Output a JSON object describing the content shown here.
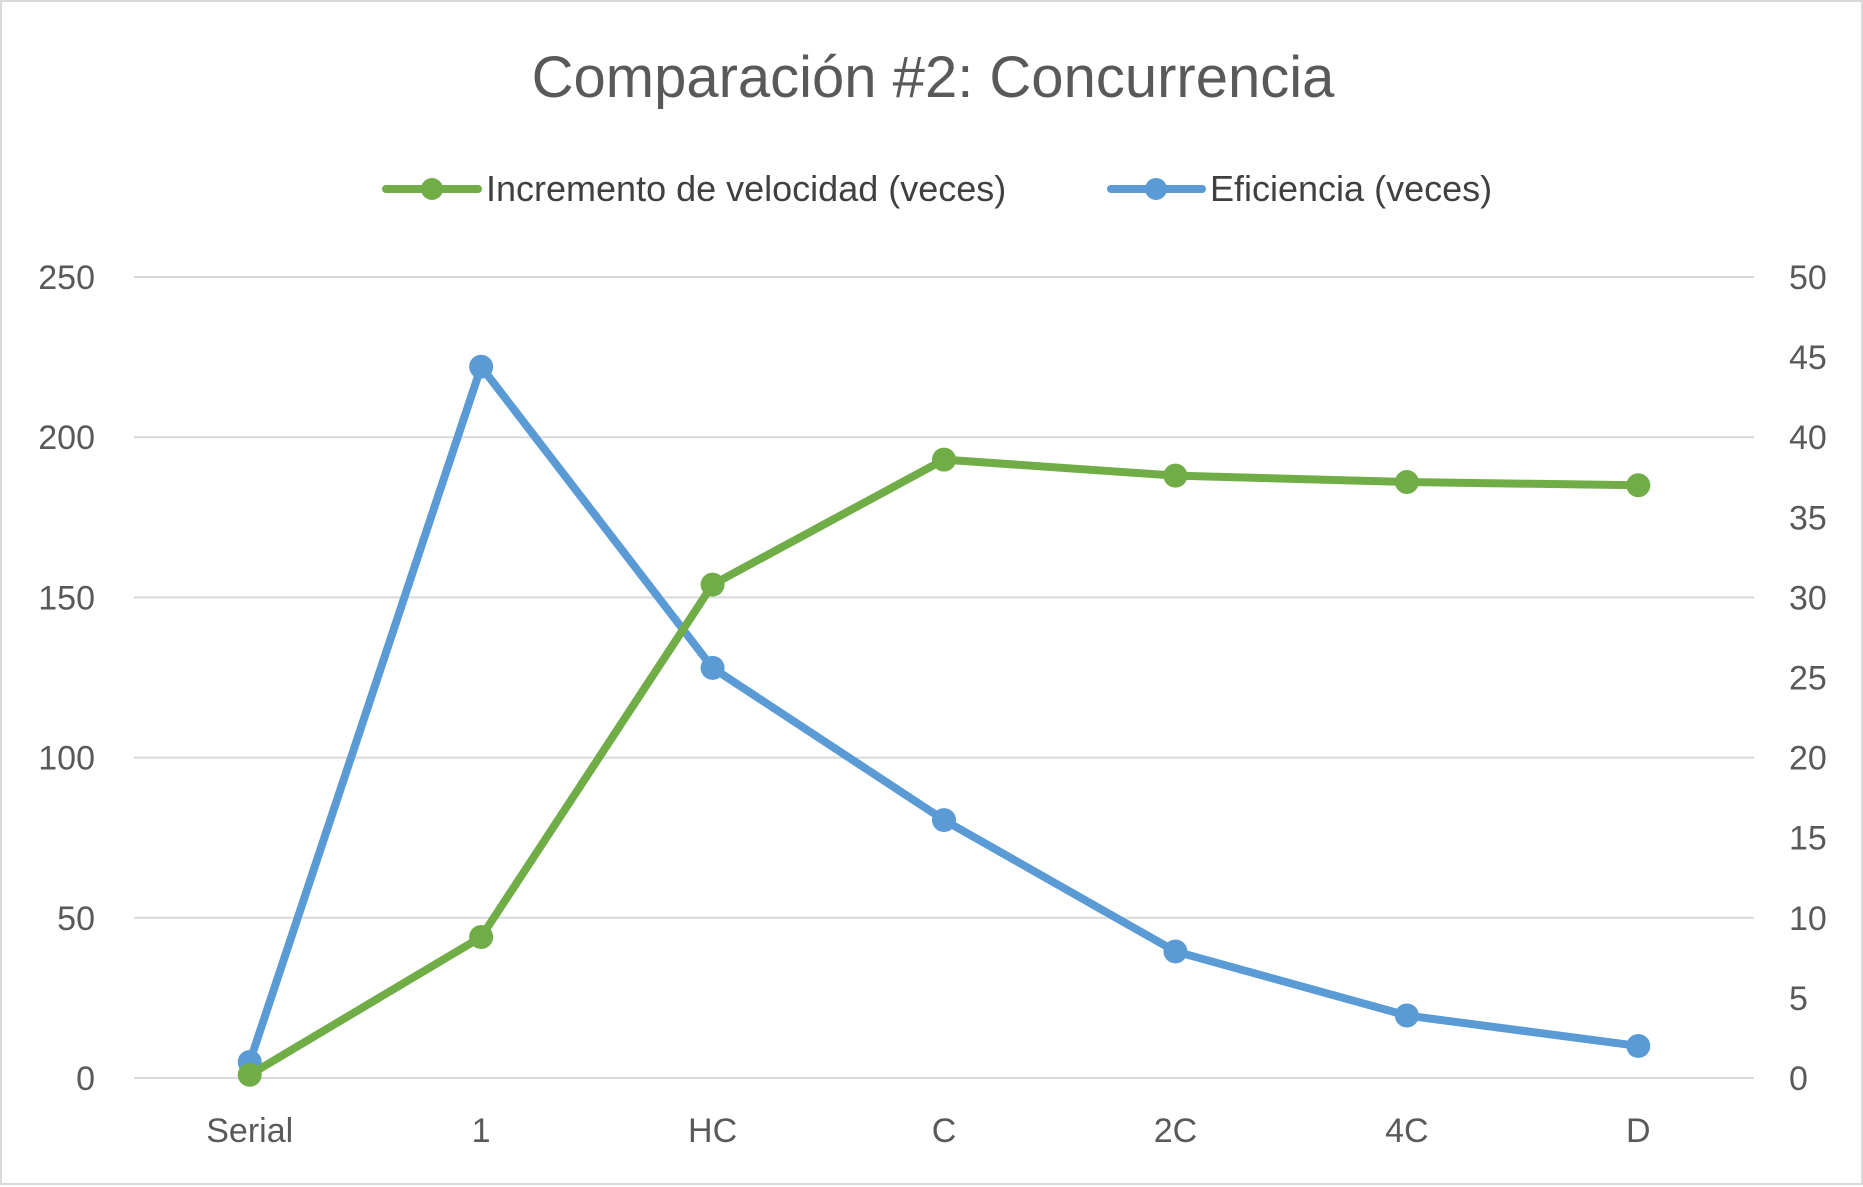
{
  "chart_data": {
    "type": "line",
    "title": "Comparación #2: Concurrencia",
    "categories": [
      "Serial",
      "1",
      "HC",
      "C",
      "2C",
      "4C",
      "D"
    ],
    "series": [
      {
        "name": "Incremento de velocidad (veces)",
        "axis": "left",
        "color": "#70ad47",
        "values": [
          1,
          44,
          154,
          193,
          188,
          186,
          185
        ]
      },
      {
        "name": "Eficiencia (veces)",
        "axis": "right",
        "color": "#5b9bd5",
        "values": [
          1,
          44.4,
          25.6,
          16.1,
          7.9,
          3.9,
          2.0
        ]
      }
    ],
    "y_left": {
      "min": 0,
      "max": 250,
      "ticks": [
        "0",
        "50",
        "100",
        "150",
        "200",
        "250"
      ]
    },
    "y_right": {
      "min": 0,
      "max": 50,
      "ticks": [
        "0",
        "5",
        "10",
        "15",
        "20",
        "25",
        "30",
        "35",
        "40",
        "45",
        "50"
      ]
    },
    "grid": true,
    "legend_position": "top"
  }
}
